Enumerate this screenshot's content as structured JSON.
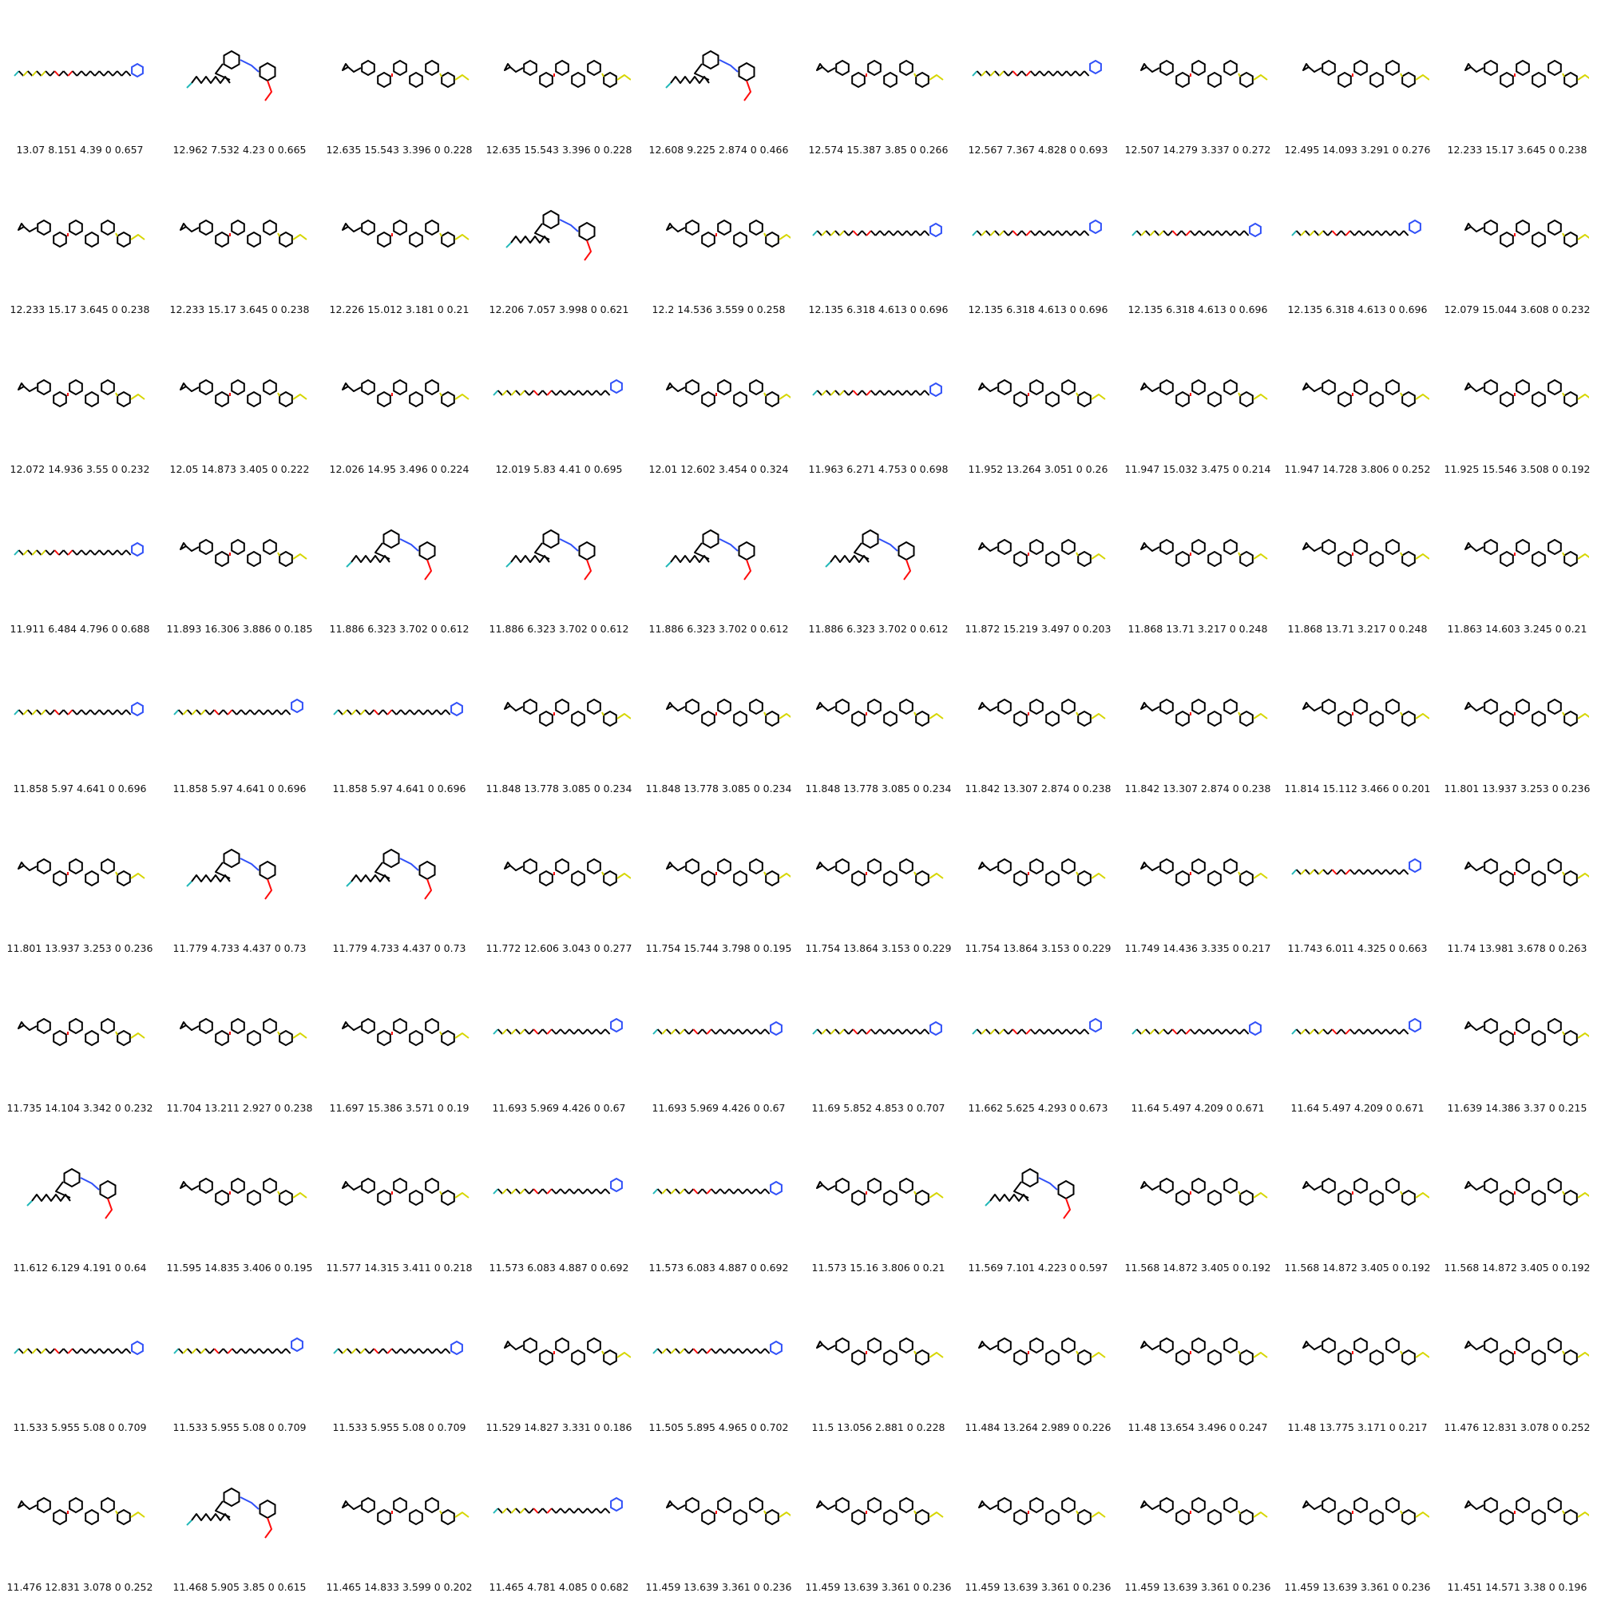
{
  "colors": {
    "bond": "#000000",
    "sulfur": "#d6d600",
    "oxygen": "#ff0d0d",
    "nitrogen": "#3050f8",
    "fluorine": "#22b8b8",
    "background": "#ffffff"
  },
  "molecules": [
    {
      "label": "13.07 8.151 4.39 0 0.657",
      "kind": "chain"
    },
    {
      "label": "12.962 7.532 4.23 0 0.665",
      "kind": "branch"
    },
    {
      "label": "12.635 15.543 3.396 0 0.228",
      "kind": "poly"
    },
    {
      "label": "12.635 15.543 3.396 0 0.228",
      "kind": "poly"
    },
    {
      "label": "12.608 9.225 2.874 0 0.466",
      "kind": "branch"
    },
    {
      "label": "12.574 15.387 3.85 0 0.266",
      "kind": "poly"
    },
    {
      "label": "12.567 7.367 4.828 0 0.693",
      "kind": "chain"
    },
    {
      "label": "12.507 14.279 3.337 0 0.272",
      "kind": "poly"
    },
    {
      "label": "12.495 14.093 3.291 0 0.276",
      "kind": "poly"
    },
    {
      "label": "12.233 15.17 3.645 0 0.238",
      "kind": "poly"
    },
    {
      "label": "12.233 15.17 3.645 0 0.238",
      "kind": "poly"
    },
    {
      "label": "12.233 15.17 3.645 0 0.238",
      "kind": "poly"
    },
    {
      "label": "12.226 15.012 3.181 0 0.21",
      "kind": "poly"
    },
    {
      "label": "12.206 7.057 3.998 0 0.621",
      "kind": "branch"
    },
    {
      "label": "12.2 14.536 3.559 0 0.258",
      "kind": "poly"
    },
    {
      "label": "12.135 6.318 4.613 0 0.696",
      "kind": "chain"
    },
    {
      "label": "12.135 6.318 4.613 0 0.696",
      "kind": "chain"
    },
    {
      "label": "12.135 6.318 4.613 0 0.696",
      "kind": "chain"
    },
    {
      "label": "12.135 6.318 4.613 0 0.696",
      "kind": "chain"
    },
    {
      "label": "12.079 15.044 3.608 0 0.232",
      "kind": "poly"
    },
    {
      "label": "12.072 14.936 3.55 0 0.232",
      "kind": "poly"
    },
    {
      "label": "12.05 14.873 3.405 0 0.222",
      "kind": "poly"
    },
    {
      "label": "12.026 14.95 3.496 0 0.224",
      "kind": "poly"
    },
    {
      "label": "12.019 5.83 4.41 0 0.695",
      "kind": "chain"
    },
    {
      "label": "12.01 12.602 3.454 0 0.324",
      "kind": "poly"
    },
    {
      "label": "11.963 6.271 4.753 0 0.698",
      "kind": "chain"
    },
    {
      "label": "11.952 13.264 3.051 0 0.26",
      "kind": "poly"
    },
    {
      "label": "11.947 15.032 3.475 0 0.214",
      "kind": "poly"
    },
    {
      "label": "11.947 14.728 3.806 0 0.252",
      "kind": "poly"
    },
    {
      "label": "11.925 15.546 3.508 0 0.192",
      "kind": "poly"
    },
    {
      "label": "11.911 6.484 4.796 0 0.688",
      "kind": "chain"
    },
    {
      "label": "11.893 16.306 3.886 0 0.185",
      "kind": "poly"
    },
    {
      "label": "11.886 6.323 3.702 0 0.612",
      "kind": "branch"
    },
    {
      "label": "11.886 6.323 3.702 0 0.612",
      "kind": "branch"
    },
    {
      "label": "11.886 6.323 3.702 0 0.612",
      "kind": "branch"
    },
    {
      "label": "11.886 6.323 3.702 0 0.612",
      "kind": "branch"
    },
    {
      "label": "11.872 15.219 3.497 0 0.203",
      "kind": "poly"
    },
    {
      "label": "11.868 13.71 3.217 0 0.248",
      "kind": "poly"
    },
    {
      "label": "11.868 13.71 3.217 0 0.248",
      "kind": "poly"
    },
    {
      "label": "11.863 14.603 3.245 0 0.21",
      "kind": "poly"
    },
    {
      "label": "11.858 5.97 4.641 0 0.696",
      "kind": "chain"
    },
    {
      "label": "11.858 5.97 4.641 0 0.696",
      "kind": "chain"
    },
    {
      "label": "11.858 5.97 4.641 0 0.696",
      "kind": "chain"
    },
    {
      "label": "11.848 13.778 3.085 0 0.234",
      "kind": "poly"
    },
    {
      "label": "11.848 13.778 3.085 0 0.234",
      "kind": "poly"
    },
    {
      "label": "11.848 13.778 3.085 0 0.234",
      "kind": "poly"
    },
    {
      "label": "11.842 13.307 2.874 0 0.238",
      "kind": "poly"
    },
    {
      "label": "11.842 13.307 2.874 0 0.238",
      "kind": "poly"
    },
    {
      "label": "11.814 15.112 3.466 0 0.201",
      "kind": "poly"
    },
    {
      "label": "11.801 13.937 3.253 0 0.236",
      "kind": "poly"
    },
    {
      "label": "11.801 13.937 3.253 0 0.236",
      "kind": "poly"
    },
    {
      "label": "11.779 4.733 4.437 0 0.73",
      "kind": "branch"
    },
    {
      "label": "11.779 4.733 4.437 0 0.73",
      "kind": "branch"
    },
    {
      "label": "11.772 12.606 3.043 0 0.277",
      "kind": "poly"
    },
    {
      "label": "11.754 15.744 3.798 0 0.195",
      "kind": "poly"
    },
    {
      "label": "11.754 13.864 3.153 0 0.229",
      "kind": "poly"
    },
    {
      "label": "11.754 13.864 3.153 0 0.229",
      "kind": "poly"
    },
    {
      "label": "11.749 14.436 3.335 0 0.217",
      "kind": "poly"
    },
    {
      "label": "11.743 6.011 4.325 0 0.663",
      "kind": "chain"
    },
    {
      "label": "11.74 13.981 3.678 0 0.263",
      "kind": "poly"
    },
    {
      "label": "11.735 14.104 3.342 0 0.232",
      "kind": "poly"
    },
    {
      "label": "11.704 13.211 2.927 0 0.238",
      "kind": "poly"
    },
    {
      "label": "11.697 15.386 3.571 0 0.19",
      "kind": "poly"
    },
    {
      "label": "11.693 5.969 4.426 0 0.67",
      "kind": "chain"
    },
    {
      "label": "11.693 5.969 4.426 0 0.67",
      "kind": "chain"
    },
    {
      "label": "11.69 5.852 4.853 0 0.707",
      "kind": "chain"
    },
    {
      "label": "11.662 5.625 4.293 0 0.673",
      "kind": "chain"
    },
    {
      "label": "11.64 5.497 4.209 0 0.671",
      "kind": "chain"
    },
    {
      "label": "11.64 5.497 4.209 0 0.671",
      "kind": "chain"
    },
    {
      "label": "11.639 14.386 3.37 0 0.215",
      "kind": "poly"
    },
    {
      "label": "11.612 6.129 4.191 0 0.64",
      "kind": "branch"
    },
    {
      "label": "11.595 14.835 3.406 0 0.195",
      "kind": "poly"
    },
    {
      "label": "11.577 14.315 3.411 0 0.218",
      "kind": "poly"
    },
    {
      "label": "11.573 6.083 4.887 0 0.692",
      "kind": "chain"
    },
    {
      "label": "11.573 6.083 4.887 0 0.692",
      "kind": "chain"
    },
    {
      "label": "11.573 15.16 3.806 0 0.21",
      "kind": "poly"
    },
    {
      "label": "11.569 7.101 4.223 0 0.597",
      "kind": "branch"
    },
    {
      "label": "11.568 14.872 3.405 0 0.192",
      "kind": "poly"
    },
    {
      "label": "11.568 14.872 3.405 0 0.192",
      "kind": "poly"
    },
    {
      "label": "11.568 14.872 3.405 0 0.192",
      "kind": "poly"
    },
    {
      "label": "11.533 5.955 5.08 0 0.709",
      "kind": "chain"
    },
    {
      "label": "11.533 5.955 5.08 0 0.709",
      "kind": "chain"
    },
    {
      "label": "11.533 5.955 5.08 0 0.709",
      "kind": "chain"
    },
    {
      "label": "11.529 14.827 3.331 0 0.186",
      "kind": "poly"
    },
    {
      "label": "11.505 5.895 4.965 0 0.702",
      "kind": "chain"
    },
    {
      "label": "11.5 13.056 2.881 0 0.228",
      "kind": "poly"
    },
    {
      "label": "11.484 13.264 2.989 0 0.226",
      "kind": "poly"
    },
    {
      "label": "11.48 13.654 3.496 0 0.247",
      "kind": "poly"
    },
    {
      "label": "11.48 13.775 3.171 0 0.217",
      "kind": "poly"
    },
    {
      "label": "11.476 12.831 3.078 0 0.252",
      "kind": "poly"
    },
    {
      "label": "11.476 12.831 3.078 0 0.252",
      "kind": "poly"
    },
    {
      "label": "11.468 5.905 3.85 0 0.615",
      "kind": "branch"
    },
    {
      "label": "11.465 14.833 3.599 0 0.202",
      "kind": "poly"
    },
    {
      "label": "11.465 4.781 4.085 0 0.682",
      "kind": "chain"
    },
    {
      "label": "11.459 13.639 3.361 0 0.236",
      "kind": "poly"
    },
    {
      "label": "11.459 13.639 3.361 0 0.236",
      "kind": "poly"
    },
    {
      "label": "11.459 13.639 3.361 0 0.236",
      "kind": "poly"
    },
    {
      "label": "11.459 13.639 3.361 0 0.236",
      "kind": "poly"
    },
    {
      "label": "11.459 13.639 3.361 0 0.236",
      "kind": "poly"
    },
    {
      "label": "11.451 14.571 3.38 0 0.196",
      "kind": "poly"
    }
  ]
}
